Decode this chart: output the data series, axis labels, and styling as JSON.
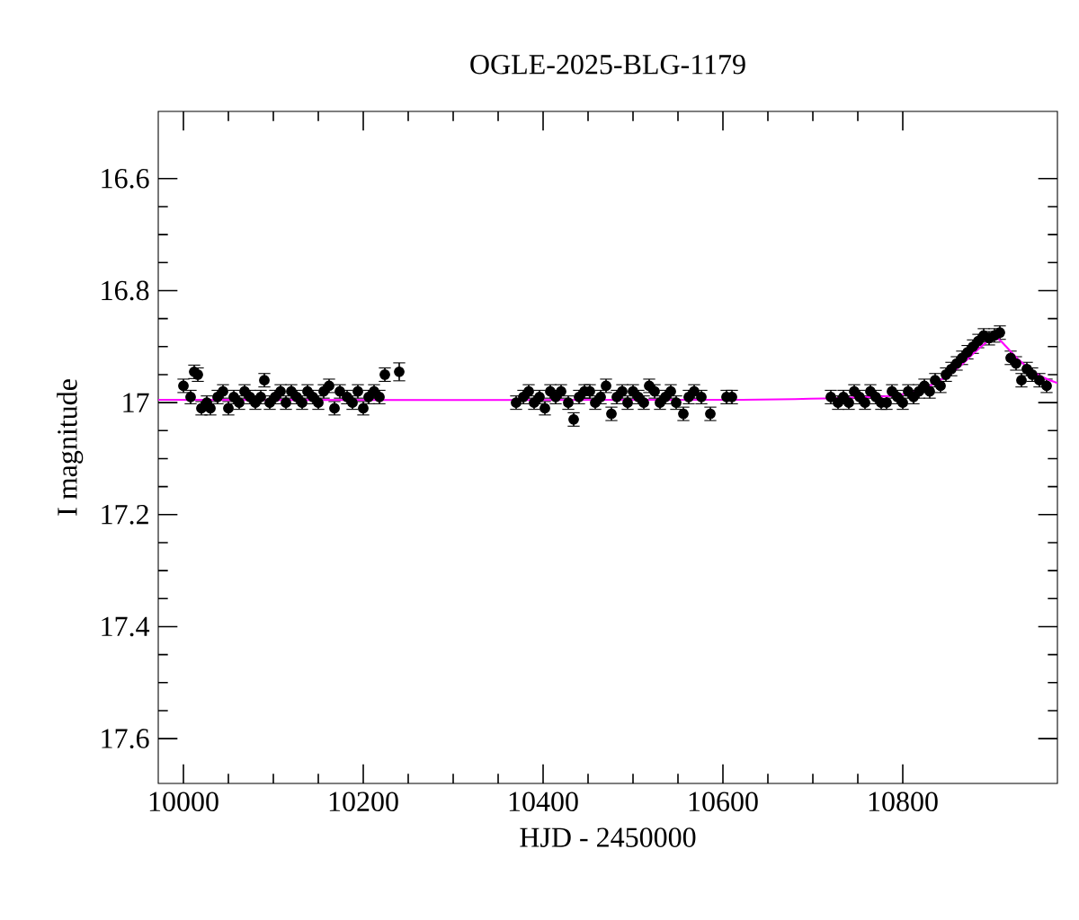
{
  "chart_data": {
    "type": "scatter",
    "title": "OGLE-2025-BLG-1179",
    "xlabel": "HJD - 2450000",
    "ylabel": "I magnitude",
    "xlim": [
      9972,
      10972
    ],
    "ylim": [
      17.68,
      16.48
    ],
    "xticks": [
      10000,
      10200,
      10400,
      10600,
      10800
    ],
    "yticks": [
      16.6,
      16.8,
      17,
      17.2,
      17.4,
      17.6
    ],
    "grid": false,
    "marker": "circle",
    "series": [
      {
        "color": "#000000",
        "x": [
          10000,
          10008,
          10012,
          10016,
          10020,
          10026,
          10030,
          10038,
          10044,
          10050,
          10056,
          10062,
          10068,
          10074,
          10080,
          10086,
          10090,
          10096,
          10102,
          10108,
          10114,
          10120,
          10126,
          10132,
          10138,
          10144,
          10150,
          10156,
          10162,
          10168,
          10174,
          10182,
          10188,
          10194,
          10200,
          10206,
          10212,
          10218,
          10224,
          10240,
          10370,
          10378,
          10384,
          10390,
          10396,
          10402,
          10408,
          10414,
          10420,
          10428,
          10434,
          10440,
          10446,
          10452,
          10458,
          10464,
          10470,
          10476,
          10482,
          10488,
          10494,
          10500,
          10506,
          10512,
          10518,
          10524,
          10530,
          10536,
          10542,
          10548,
          10556,
          10562,
          10568,
          10576,
          10586,
          10604,
          10610,
          10720,
          10728,
          10734,
          10740,
          10746,
          10752,
          10758,
          10764,
          10770,
          10776,
          10782,
          10788,
          10794,
          10800,
          10806,
          10812,
          10818,
          10824,
          10830,
          10836,
          10842,
          10848,
          10854,
          10860,
          10866,
          10872,
          10878,
          10884,
          10890,
          10896,
          10902,
          10908,
          10920,
          10926,
          10932,
          10938,
          10944,
          10952,
          10960
        ],
        "values": [
          16.97,
          16.99,
          16.945,
          16.95,
          17.01,
          17.0,
          17.01,
          16.99,
          16.98,
          17.01,
          16.99,
          17.0,
          16.98,
          16.99,
          17.0,
          16.99,
          16.96,
          17.0,
          16.99,
          16.98,
          17.0,
          16.98,
          16.99,
          17.0,
          16.98,
          16.99,
          17.0,
          16.98,
          16.97,
          17.01,
          16.98,
          16.99,
          17.0,
          16.98,
          17.01,
          16.99,
          16.98,
          16.99,
          16.95,
          16.945,
          17.0,
          16.99,
          16.98,
          17.0,
          16.99,
          17.01,
          16.98,
          16.99,
          16.98,
          17.0,
          17.03,
          16.99,
          16.98,
          16.98,
          17.0,
          16.99,
          16.97,
          17.02,
          16.99,
          16.98,
          17.0,
          16.98,
          16.99,
          17.0,
          16.97,
          16.98,
          17.0,
          16.99,
          16.98,
          17.0,
          17.02,
          16.99,
          16.98,
          16.99,
          17.02,
          16.99,
          16.99,
          16.99,
          17.0,
          16.99,
          17.0,
          16.98,
          16.99,
          17.0,
          16.98,
          16.99,
          17.0,
          17.0,
          16.98,
          16.99,
          17.0,
          16.98,
          16.99,
          16.98,
          16.97,
          16.98,
          16.96,
          16.97,
          16.95,
          16.94,
          16.93,
          16.92,
          16.91,
          16.9,
          16.89,
          16.88,
          16.885,
          16.88,
          16.875,
          16.92,
          16.93,
          16.96,
          16.94,
          16.95,
          16.96,
          16.97
        ],
        "errors": [
          0.012,
          0.012,
          0.012,
          0.012,
          0.012,
          0.012,
          0.012,
          0.012,
          0.012,
          0.012,
          0.012,
          0.012,
          0.012,
          0.012,
          0.012,
          0.012,
          0.012,
          0.012,
          0.012,
          0.012,
          0.012,
          0.012,
          0.012,
          0.012,
          0.012,
          0.012,
          0.012,
          0.012,
          0.012,
          0.012,
          0.012,
          0.012,
          0.012,
          0.012,
          0.012,
          0.012,
          0.012,
          0.012,
          0.012,
          0.016,
          0.012,
          0.012,
          0.012,
          0.012,
          0.012,
          0.012,
          0.012,
          0.012,
          0.012,
          0.012,
          0.012,
          0.012,
          0.012,
          0.012,
          0.012,
          0.012,
          0.012,
          0.012,
          0.012,
          0.012,
          0.012,
          0.012,
          0.012,
          0.012,
          0.012,
          0.012,
          0.012,
          0.012,
          0.012,
          0.012,
          0.012,
          0.012,
          0.012,
          0.012,
          0.012,
          0.012,
          0.012,
          0.012,
          0.012,
          0.012,
          0.012,
          0.012,
          0.012,
          0.012,
          0.012,
          0.012,
          0.012,
          0.012,
          0.012,
          0.012,
          0.012,
          0.012,
          0.012,
          0.012,
          0.012,
          0.012,
          0.012,
          0.012,
          0.012,
          0.012,
          0.012,
          0.012,
          0.012,
          0.012,
          0.012,
          0.012,
          0.012,
          0.012,
          0.012,
          0.012,
          0.012,
          0.012,
          0.012,
          0.012,
          0.012,
          0.012
        ]
      },
      {
        "type": "line",
        "color": "#ff00ff",
        "marker": "none",
        "x": [
          9972,
          10600,
          10760,
          10800,
          10830,
          10860,
          10880,
          10895,
          10905,
          10915,
          10930,
          10950,
          10972
        ],
        "values": [
          16.995,
          16.995,
          16.99,
          16.985,
          16.97,
          16.94,
          16.91,
          16.89,
          16.885,
          16.9,
          16.925,
          16.95,
          16.965
        ]
      }
    ]
  }
}
